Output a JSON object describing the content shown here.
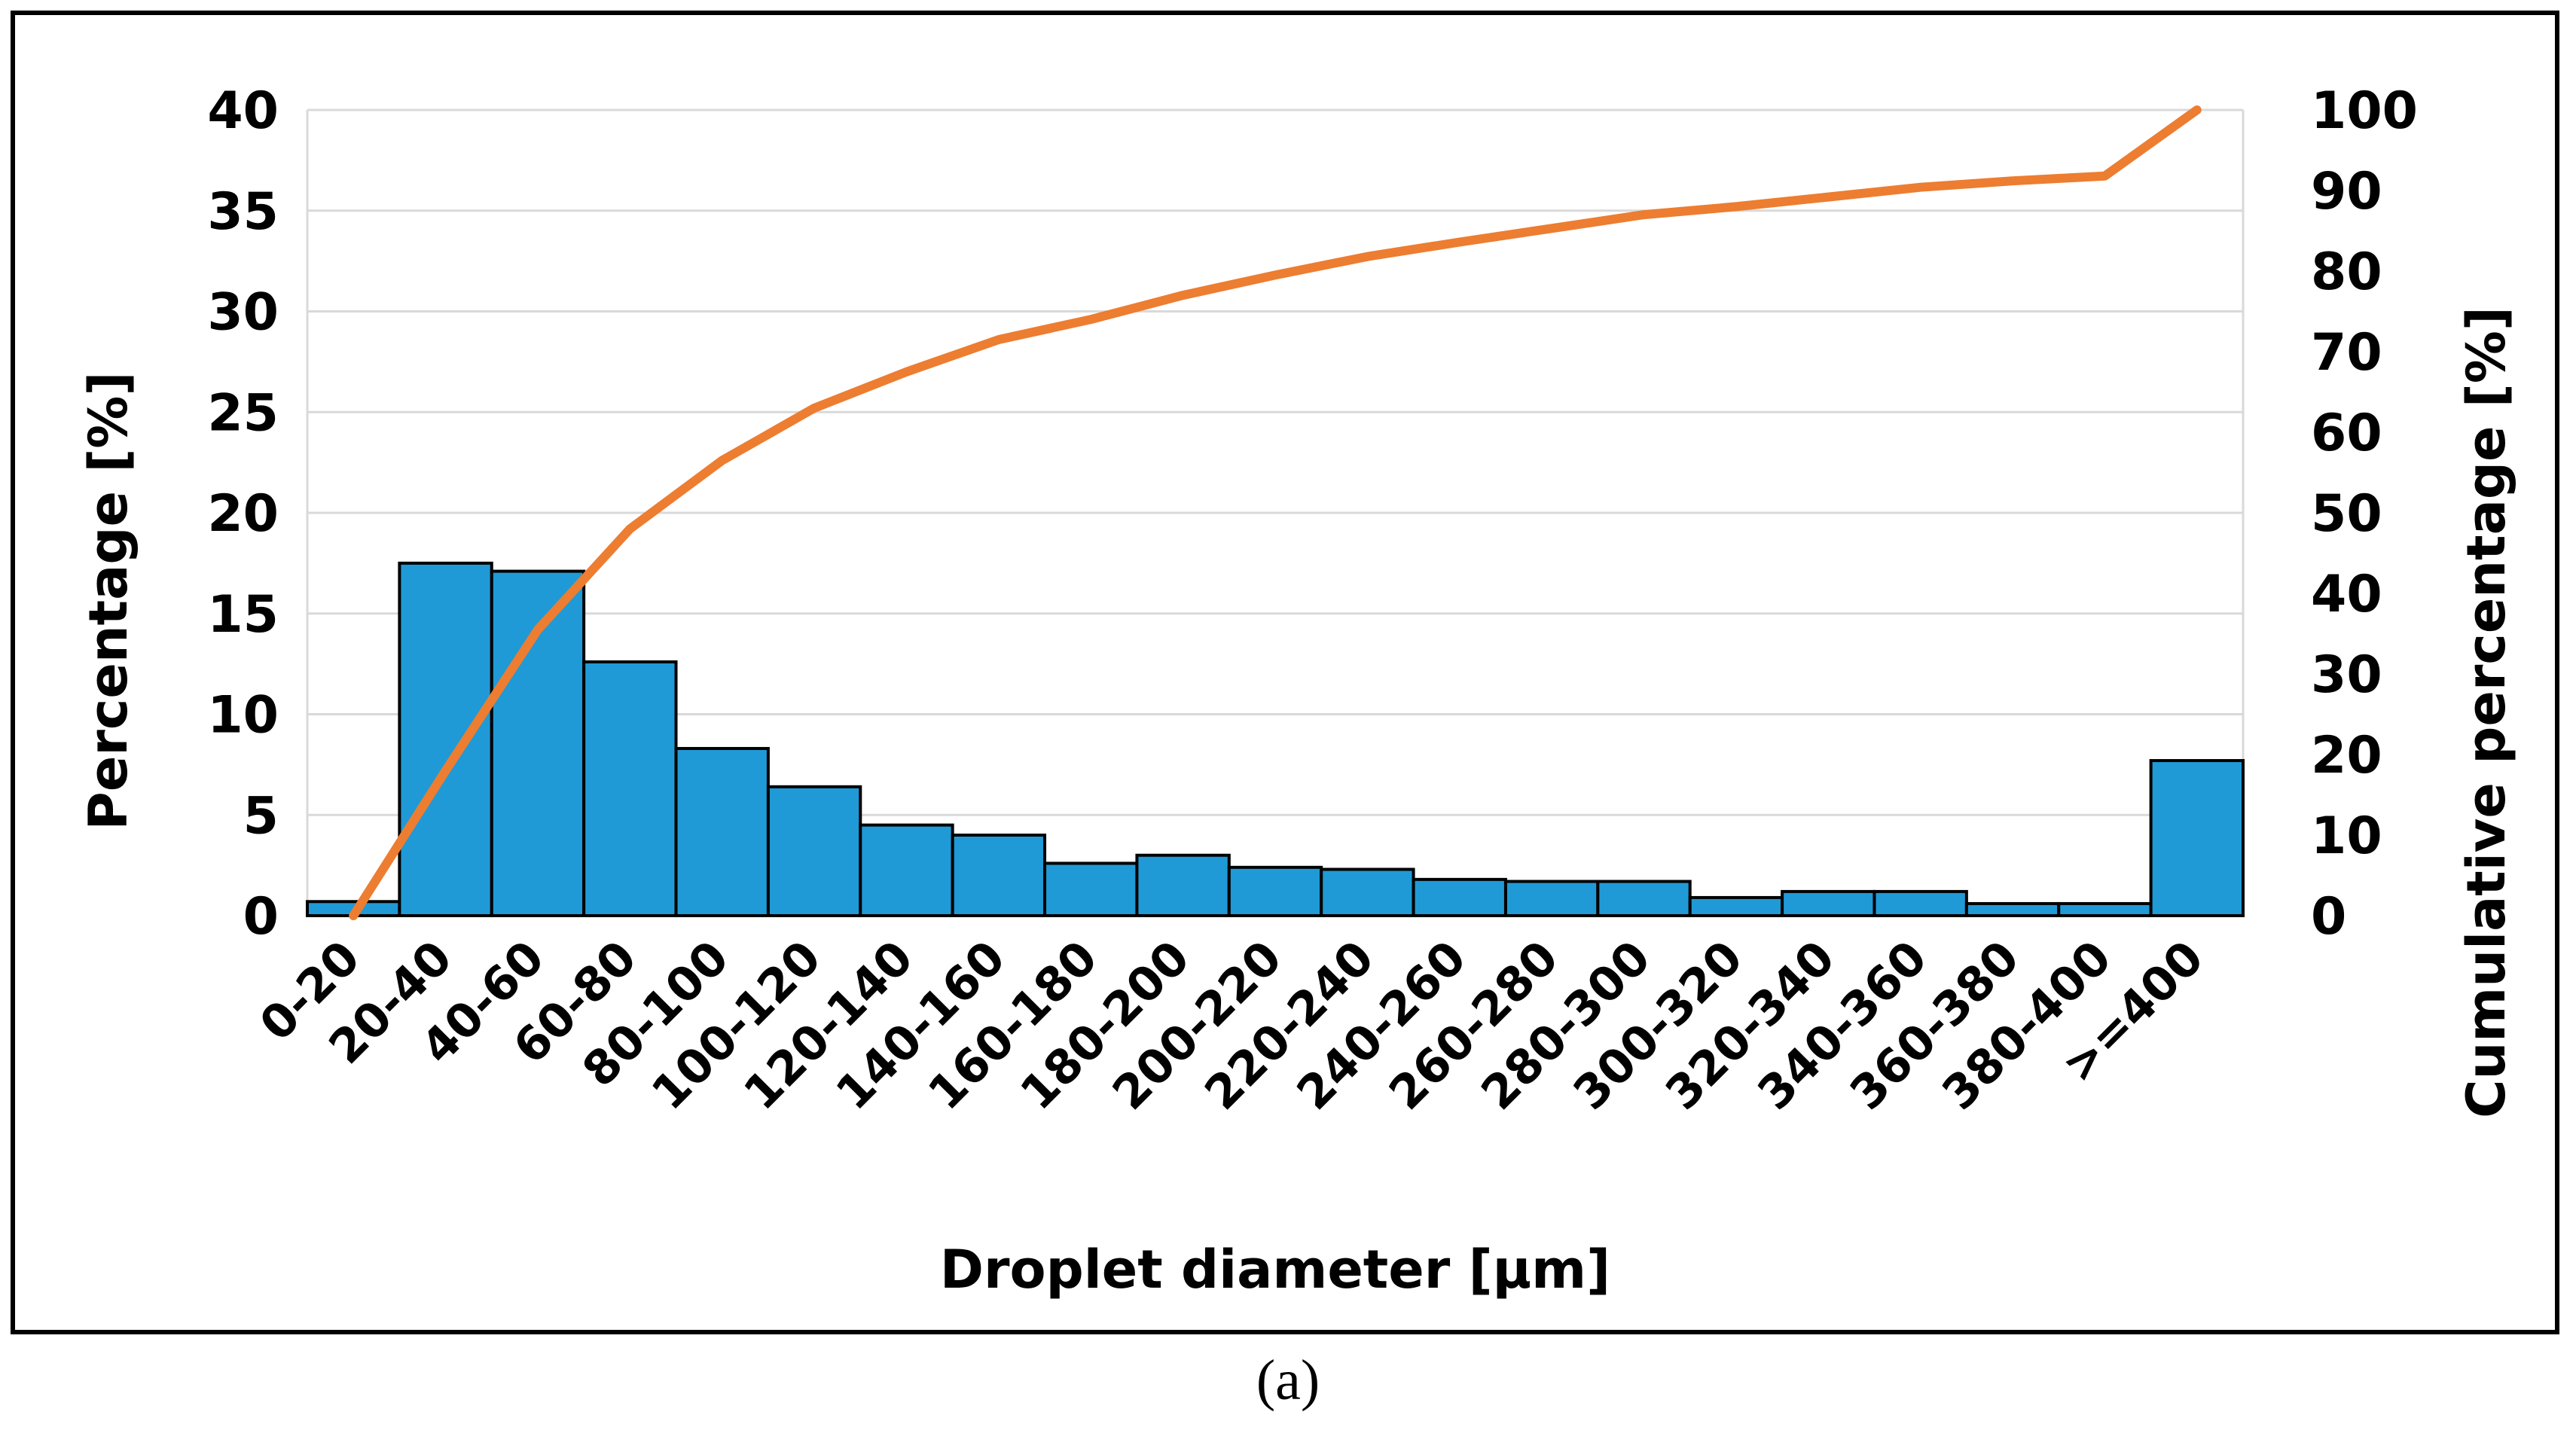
{
  "caption": "(a)",
  "chart_data": {
    "type": "bar",
    "title": "",
    "categories": [
      "0-20",
      "20-40",
      "40-60",
      "60-80",
      "80-100",
      "100-120",
      "120-140",
      "140-160",
      "160-180",
      "180-200",
      "200-220",
      "220-240",
      "240-260",
      "260-280",
      "280-300",
      "300-320",
      "320-340",
      "340-360",
      "360-380",
      "380-400",
      ">=400"
    ],
    "xlabel": "Droplet diameter [μm]",
    "ylabel": "Percentage [%]",
    "ylim": [
      0,
      40
    ],
    "yticks": [
      0,
      5,
      10,
      15,
      20,
      25,
      30,
      35,
      40
    ],
    "y2label": "Cumulative percentage [%]",
    "y2lim": [
      0,
      100
    ],
    "y2ticks": [
      0,
      10,
      20,
      30,
      40,
      50,
      60,
      70,
      80,
      90,
      100
    ],
    "grid": true,
    "legend": false,
    "bar_color": "#1f9ad6",
    "bar_edge_color": "#000000",
    "line_color": "#ed7d31",
    "series": [
      {
        "type": "bar",
        "axis": "left",
        "values": [
          0.7,
          17.5,
          17.1,
          12.6,
          8.3,
          6.4,
          4.5,
          4.0,
          2.6,
          3.0,
          2.4,
          2.3,
          1.8,
          1.7,
          1.7,
          0.9,
          1.2,
          1.2,
          0.6,
          0.6,
          7.7
        ]
      },
      {
        "type": "line",
        "axis": "right",
        "values": [
          0,
          18,
          35.5,
          48,
          56.5,
          63,
          67.5,
          71.5,
          74,
          77,
          79.5,
          81.8,
          83.6,
          85.3,
          87,
          88,
          89.2,
          90.4,
          91.2,
          91.8,
          100
        ]
      }
    ]
  }
}
